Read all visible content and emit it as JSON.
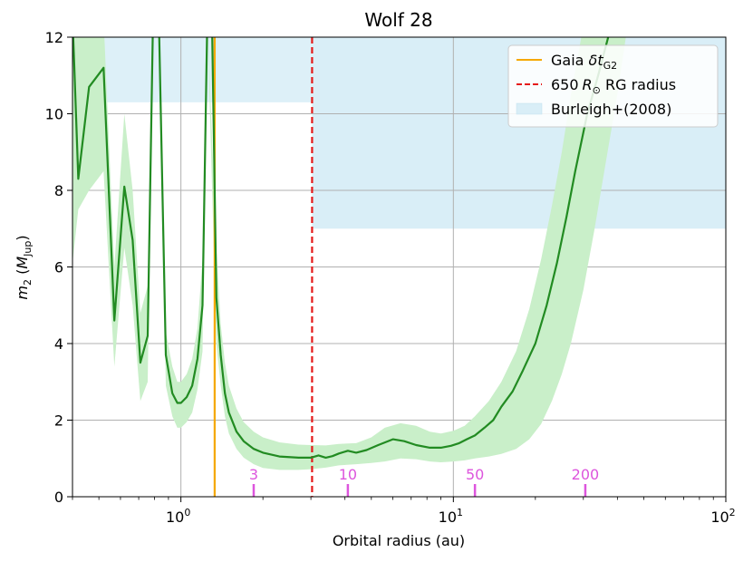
{
  "chart_data": {
    "type": "line",
    "title": "Wolf 28",
    "xlabel": "Orbital radius (au)",
    "ylabel_main": "m",
    "ylabel_sub": "2",
    "ylabel_unit_main": "M",
    "ylabel_unit_sub": "Jup",
    "xscale": "log",
    "xlim": [
      0.4,
      100
    ],
    "ylim": [
      0,
      12
    ],
    "grid": true,
    "x_ticks": [
      {
        "value": 1,
        "base": "10",
        "exp": "0"
      },
      {
        "value": 10,
        "base": "10",
        "exp": "1"
      },
      {
        "value": 100,
        "base": "10",
        "exp": "2"
      }
    ],
    "y_ticks": [
      {
        "value": 0,
        "label": "0"
      },
      {
        "value": 2,
        "label": "2"
      },
      {
        "value": 4,
        "label": "4"
      },
      {
        "value": 6,
        "label": "6"
      },
      {
        "value": 8,
        "label": "8"
      },
      {
        "value": 10,
        "label": "10"
      },
      {
        "value": 12,
        "label": "12"
      }
    ],
    "legend_position": "top-right",
    "legend": {
      "gaia_prefix": "Gaia ",
      "gaia_symbol": "δt",
      "gaia_sub": "G2",
      "rg_prefix": "650",
      "rg_symbol": "R",
      "rg_sub": "⊙",
      "rg_suffix": " RG radius",
      "burleigh": "Burleigh+(2008)"
    },
    "gaia_line_x": 1.33,
    "rg_line_x": 3.03,
    "burleigh_regions": [
      {
        "x": [
          0.4,
          3.03
        ],
        "y": [
          7,
          12
        ]
      },
      {
        "x": [
          3.03,
          100
        ],
        "y": [
          7,
          12
        ]
      }
    ],
    "burleigh_gap_region": {
      "x": [
        0.4,
        3.03
      ],
      "y": [
        12,
        12
      ]
    },
    "period_markers": [
      {
        "label": "3",
        "x": 1.85
      },
      {
        "label": "10",
        "x": 4.1
      },
      {
        "label": "50",
        "x": 12.0
      },
      {
        "label": "200",
        "x": 30.5
      }
    ],
    "series": [
      {
        "x": [
          0.4,
          0.405,
          0.42,
          0.46,
          0.52,
          0.57,
          0.62,
          0.665,
          0.71,
          0.755,
          0.79,
          0.81,
          0.83,
          0.88,
          0.93,
          0.97,
          1.0,
          1.05,
          1.1,
          1.15,
          1.2,
          1.25,
          1.27,
          1.3,
          1.35,
          1.4,
          1.45,
          1.5,
          1.6,
          1.7,
          1.85,
          2.0,
          2.3,
          2.7,
          3.0,
          3.2,
          3.4,
          3.6,
          3.8,
          4.1,
          4.4,
          4.8,
          5.3,
          6.0,
          6.6,
          7.3,
          8.2,
          9.0,
          9.8,
          10.5,
          11.2,
          12.0,
          13.0,
          14.0,
          15.0,
          16.5,
          18.0,
          20.0,
          22.0,
          24.0,
          26.0,
          28.0,
          31.0,
          34.0,
          37.0,
          40.0
        ],
        "y": [
          12.5,
          11.5,
          8.3,
          10.7,
          11.2,
          4.6,
          8.1,
          6.7,
          3.5,
          4.2,
          12.5,
          12.5,
          12.5,
          3.7,
          2.7,
          2.45,
          2.45,
          2.6,
          2.9,
          3.6,
          5.0,
          12.5,
          12.5,
          12.5,
          5.2,
          3.7,
          2.7,
          2.2,
          1.7,
          1.45,
          1.25,
          1.15,
          1.05,
          1.02,
          1.02,
          1.08,
          1.02,
          1.06,
          1.13,
          1.2,
          1.15,
          1.22,
          1.35,
          1.5,
          1.45,
          1.35,
          1.28,
          1.28,
          1.33,
          1.4,
          1.5,
          1.6,
          1.8,
          2.0,
          2.35,
          2.75,
          3.3,
          4.0,
          5.0,
          6.1,
          7.3,
          8.5,
          10.0,
          11.0,
          12.0,
          12.5
        ]
      }
    ],
    "band": {
      "x": [
        0.4,
        0.42,
        0.46,
        0.52,
        0.57,
        0.62,
        0.665,
        0.71,
        0.755,
        0.79,
        0.83,
        0.88,
        0.93,
        0.97,
        1.0,
        1.05,
        1.1,
        1.15,
        1.2,
        1.25,
        1.35,
        1.4,
        1.45,
        1.5,
        1.6,
        1.7,
        1.85,
        2.0,
        2.3,
        2.7,
        3.0,
        3.4,
        3.8,
        4.4,
        5.0,
        5.6,
        6.4,
        7.3,
        8.2,
        9.0,
        10.0,
        11.0,
        12.0,
        13.5,
        15.0,
        17.0,
        19.0,
        21.0,
        23.0,
        25.0,
        27.0,
        30.0,
        33.0,
        36.0,
        40.0,
        44.0,
        48.0
      ],
      "upper": [
        12.5,
        12.5,
        12.5,
        12.5,
        6.0,
        10.0,
        8.0,
        4.8,
        5.5,
        12.5,
        12.5,
        4.3,
        3.4,
        3.0,
        3.0,
        3.2,
        3.6,
        4.4,
        6.2,
        12.5,
        6.5,
        4.5,
        3.5,
        2.9,
        2.3,
        1.95,
        1.7,
        1.55,
        1.42,
        1.36,
        1.35,
        1.34,
        1.38,
        1.4,
        1.55,
        1.8,
        1.92,
        1.85,
        1.7,
        1.65,
        1.72,
        1.85,
        2.1,
        2.5,
        3.0,
        3.8,
        4.9,
        6.2,
        7.6,
        9.0,
        10.5,
        12.3,
        12.5,
        12.5,
        12.5,
        12.5,
        12.5
      ],
      "lower": [
        6.1,
        7.5,
        8.0,
        8.5,
        3.4,
        6.5,
        5.0,
        2.5,
        3.0,
        12.5,
        12.5,
        2.9,
        2.1,
        1.8,
        1.8,
        1.95,
        2.2,
        2.8,
        3.8,
        12.5,
        4.0,
        2.9,
        2.1,
        1.65,
        1.25,
        1.02,
        0.85,
        0.75,
        0.7,
        0.7,
        0.72,
        0.76,
        0.82,
        0.85,
        0.88,
        0.92,
        1.0,
        0.98,
        0.92,
        0.9,
        0.92,
        0.95,
        1.0,
        1.05,
        1.12,
        1.25,
        1.5,
        1.9,
        2.5,
        3.2,
        4.0,
        5.4,
        7.0,
        8.6,
        10.5,
        12.5,
        12.5
      ]
    },
    "colors": {
      "line": "#228b22",
      "band": "#c9efc9",
      "burleigh": "#d9eef7",
      "gaia": "#f5a800",
      "rg": "#e51a1a",
      "period": "#dd55dd",
      "grid": "#b0b0b0"
    }
  }
}
